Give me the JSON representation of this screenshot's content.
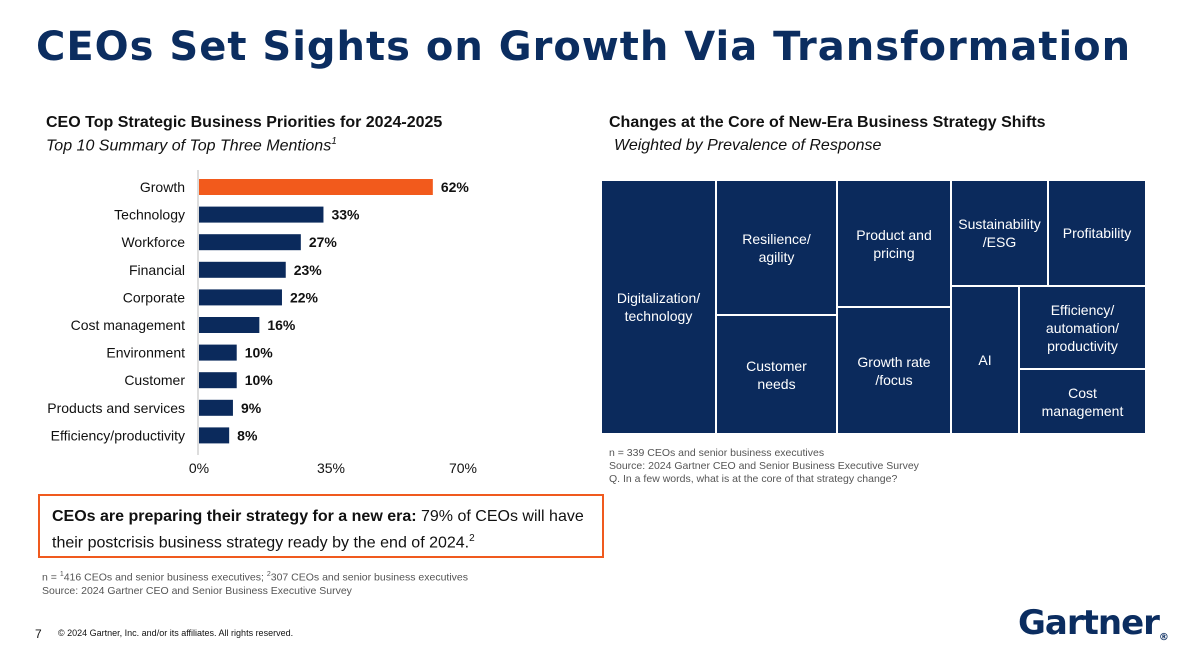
{
  "title": "CEOs Set Sights on Growth Via Transformation",
  "left_chart": {
    "heading": "CEO Top Strategic Business Priorities for 2024-2025",
    "subheading": "Top 10 Summary of Top Three Mentions",
    "subheading_sup": "1"
  },
  "chart_data": {
    "type": "bar",
    "orientation": "horizontal",
    "categories": [
      "Growth",
      "Technology",
      "Workforce",
      "Financial",
      "Corporate",
      "Cost management",
      "Environment",
      "Customer",
      "Products and services",
      "Efficiency/productivity"
    ],
    "values": [
      62,
      33,
      27,
      23,
      22,
      16,
      10,
      10,
      9,
      8
    ],
    "value_labels": [
      "62%",
      "33%",
      "27%",
      "23%",
      "22%",
      "16%",
      "10%",
      "10%",
      "9%",
      "8%"
    ],
    "xlim": [
      0,
      70
    ],
    "xticks": [
      "0%",
      "35%",
      "70%"
    ],
    "highlight_color": "#f25a1c",
    "bar_color": "#0b2a5c",
    "grid": false
  },
  "right_chart": {
    "heading": "Changes at the Core of New-Era Business Strategy Shifts",
    "subheading": "Weighted by Prevalence of Response",
    "tiles": [
      "Digitalization/\ntechnology",
      "Resilience/\nagility",
      "Customer\nneeds",
      "Product and\npricing",
      "Growth rate\n/focus",
      "Sustainability\n/ESG",
      "Profitability",
      "AI",
      "Efficiency/\nautomation/\nproductivity",
      "Cost\nmanagement"
    ],
    "notes": [
      "n = 339 CEOs and senior business executives",
      "Source: 2024 Gartner CEO and Senior Business Executive Survey",
      "Q. In a few words, what is at the core of that strategy change?"
    ]
  },
  "callout": {
    "bold": "CEOs are preparing their strategy for a new era:",
    "text": " 79% of CEOs will have their postcrisis business strategy ready by the end of 2024.",
    "sup": "2"
  },
  "left_notes": {
    "n_prefix": "n = ",
    "sup1": "1",
    "part1": "416 CEOs and senior business executives; ",
    "sup2": "2",
    "part2": "307 CEOs and senior business executives",
    "source": "Source: 2024 Gartner CEO and Senior Business Executive Survey"
  },
  "footer": {
    "page": "7",
    "copyright": "© 2024 Gartner, Inc. and/or its affiliates. All rights reserved.",
    "logo": "Gartner",
    "logo_mark": "®"
  }
}
